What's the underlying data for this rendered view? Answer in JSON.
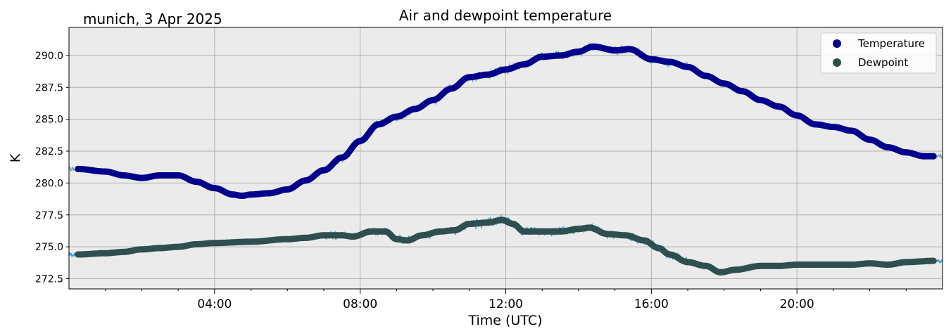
{
  "chart_data": {
    "type": "line",
    "title": "Air and dewpoint temperature",
    "subtitle": "munich, 3 Apr 2025",
    "xlabel": "Time (UTC)",
    "ylabel": "K",
    "xlim": [
      0,
      24
    ],
    "ylim": [
      271.7,
      292.2
    ],
    "x_ticks": [
      {
        "value": 4,
        "label": "04:00"
      },
      {
        "value": 8,
        "label": "08:00"
      },
      {
        "value": 12,
        "label": "12:00"
      },
      {
        "value": 16,
        "label": "16:00"
      },
      {
        "value": 20,
        "label": "20:00"
      }
    ],
    "y_ticks": [
      {
        "value": 272.5,
        "label": "272.5"
      },
      {
        "value": 275.0,
        "label": "275.0"
      },
      {
        "value": 277.5,
        "label": "277.5"
      },
      {
        "value": 280.0,
        "label": "280.0"
      },
      {
        "value": 282.5,
        "label": "282.5"
      },
      {
        "value": 285.0,
        "label": "285.0"
      },
      {
        "value": 287.5,
        "label": "287.5"
      },
      {
        "value": 290.0,
        "label": "290.0"
      }
    ],
    "grid": true,
    "legend": "top-right",
    "series": [
      {
        "name": "Temperature",
        "color": "#00008b",
        "raw_color": "#6fa3b3",
        "points": [
          [
            0.25,
            281.1
          ],
          [
            1.0,
            280.9
          ],
          [
            1.5,
            280.6
          ],
          [
            2.0,
            280.4
          ],
          [
            2.5,
            280.6
          ],
          [
            3.0,
            280.6
          ],
          [
            3.5,
            280.1
          ],
          [
            4.0,
            279.6
          ],
          [
            4.5,
            279.1
          ],
          [
            4.75,
            279.0
          ],
          [
            5.0,
            279.1
          ],
          [
            5.5,
            279.2
          ],
          [
            6.0,
            279.5
          ],
          [
            6.5,
            280.2
          ],
          [
            7.0,
            281.0
          ],
          [
            7.5,
            282.0
          ],
          [
            8.0,
            283.3
          ],
          [
            8.5,
            284.6
          ],
          [
            9.0,
            285.2
          ],
          [
            9.5,
            285.8
          ],
          [
            10.0,
            286.5
          ],
          [
            10.5,
            287.4
          ],
          [
            11.0,
            288.3
          ],
          [
            11.5,
            288.5
          ],
          [
            12.0,
            288.9
          ],
          [
            12.5,
            289.3
          ],
          [
            13.0,
            289.9
          ],
          [
            13.5,
            290.0
          ],
          [
            14.0,
            290.3
          ],
          [
            14.4,
            290.7
          ],
          [
            15.0,
            290.4
          ],
          [
            15.4,
            290.5
          ],
          [
            16.0,
            289.7
          ],
          [
            16.5,
            289.5
          ],
          [
            17.0,
            289.1
          ],
          [
            17.5,
            288.4
          ],
          [
            18.0,
            287.8
          ],
          [
            18.5,
            287.2
          ],
          [
            19.0,
            286.5
          ],
          [
            19.5,
            286.0
          ],
          [
            20.0,
            285.3
          ],
          [
            20.5,
            284.6
          ],
          [
            21.0,
            284.4
          ],
          [
            21.5,
            284.1
          ],
          [
            22.0,
            283.4
          ],
          [
            22.5,
            282.8
          ],
          [
            23.0,
            282.4
          ],
          [
            23.5,
            282.1
          ],
          [
            23.75,
            282.1
          ]
        ]
      },
      {
        "name": "Dewpoint",
        "color": "#2f4f4f",
        "raw_color": "#1e9be0",
        "points": [
          [
            0.25,
            274.4
          ],
          [
            1.0,
            274.5
          ],
          [
            1.5,
            274.6
          ],
          [
            2.0,
            274.8
          ],
          [
            2.5,
            274.9
          ],
          [
            3.0,
            275.0
          ],
          [
            3.5,
            275.2
          ],
          [
            4.0,
            275.3
          ],
          [
            5.0,
            275.4
          ],
          [
            6.0,
            275.6
          ],
          [
            6.5,
            275.7
          ],
          [
            7.0,
            275.9
          ],
          [
            7.5,
            275.9
          ],
          [
            7.8,
            275.8
          ],
          [
            8.3,
            276.2
          ],
          [
            8.7,
            276.2
          ],
          [
            9.0,
            275.6
          ],
          [
            9.3,
            275.5
          ],
          [
            9.7,
            275.9
          ],
          [
            10.2,
            276.2
          ],
          [
            10.6,
            276.3
          ],
          [
            11.0,
            276.8
          ],
          [
            11.5,
            276.9
          ],
          [
            11.9,
            277.1
          ],
          [
            12.2,
            276.8
          ],
          [
            12.5,
            276.2
          ],
          [
            13.0,
            276.2
          ],
          [
            13.5,
            276.2
          ],
          [
            14.0,
            276.4
          ],
          [
            14.3,
            276.5
          ],
          [
            14.8,
            276.0
          ],
          [
            15.3,
            275.9
          ],
          [
            15.8,
            275.5
          ],
          [
            16.2,
            274.9
          ],
          [
            16.5,
            274.4
          ],
          [
            17.0,
            273.8
          ],
          [
            17.5,
            273.5
          ],
          [
            17.9,
            273.0
          ],
          [
            18.3,
            273.2
          ],
          [
            19.0,
            273.5
          ],
          [
            19.5,
            273.5
          ],
          [
            20.0,
            273.6
          ],
          [
            21.0,
            273.6
          ],
          [
            21.5,
            273.6
          ],
          [
            22.0,
            273.7
          ],
          [
            22.5,
            273.6
          ],
          [
            23.0,
            273.8
          ],
          [
            23.75,
            273.9
          ]
        ]
      }
    ]
  }
}
